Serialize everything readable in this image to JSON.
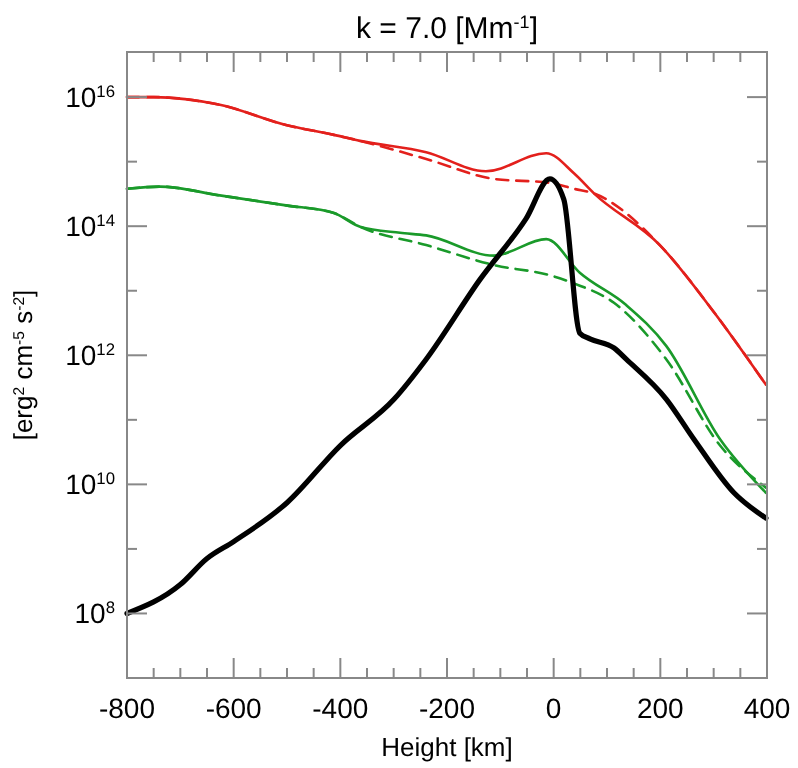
{
  "chart_data": {
    "type": "line",
    "title": "k = 7.0 [Mm$^{-1}$]",
    "xlabel": "Height [km]",
    "ylabel": "[erg$^{2}$ cm$^{-5}$ s$^{-2}$]",
    "log": "y",
    "grid": false,
    "xlim": [
      -800,
      400
    ],
    "ylim": [
      10000000.0,
      5e+16
    ],
    "xticks": [
      -800,
      {
        "value": -750,
        "label": null
      },
      {
        "value": -700,
        "label": null
      },
      {
        "value": -650,
        "label": null
      },
      -600,
      {
        "value": -550,
        "label": null
      },
      {
        "value": -500,
        "label": null
      },
      {
        "value": -450,
        "label": null
      },
      -400,
      {
        "value": -350,
        "label": null
      },
      {
        "value": -300,
        "label": null
      },
      {
        "value": -250,
        "label": null
      },
      -200,
      {
        "value": -150,
        "label": null
      },
      {
        "value": -100,
        "label": null
      },
      {
        "value": -50,
        "label": null
      },
      0,
      {
        "value": 50,
        "label": null
      },
      {
        "value": 100,
        "label": null
      },
      {
        "value": 150,
        "label": null
      },
      200,
      {
        "value": 250,
        "label": null
      },
      {
        "value": 300,
        "label": null
      },
      {
        "value": 350,
        "label": null
      },
      400
    ],
    "yticks": [
      {
        "value": 100000000.0,
        "label": "10$^{8}$"
      },
      {
        "value": 1000000000.0,
        "label": null
      },
      {
        "value": 10000000000.0,
        "label": "10$^{10}$"
      },
      {
        "value": 100000000000.0,
        "label": null
      },
      {
        "value": 1000000000000.0,
        "label": "10$^{12}$"
      },
      {
        "value": 10000000000000.0,
        "label": null
      },
      {
        "value": 100000000000000.0,
        "label": "10$^{14}$"
      },
      {
        "value": 1000000000000000.0,
        "label": null
      },
      {
        "value": 1e+16,
        "label": "10$^{16}$"
      }
    ],
    "series": [
      {
        "color": "#e3201c",
        "line_style": "solid",
        "x": [
          -800,
          -750,
          -626,
          -502,
          -412,
          -363,
          -239,
          -127,
          -14,
          38,
          76,
          199,
          301,
          398
        ],
        "values": [
          1e+16,
          1e+16,
          7600000000000000.0,
          3700000000000000.0,
          2600000000000000.0,
          2100000000000000.0,
          1400000000000000.0,
          710000000000000.0,
          1350000000000000.0,
          660000000000000.0,
          320000000000000.0,
          51000000000000.0,
          4600000000000.0,
          350000000000.0
        ]
      },
      {
        "color": "#e3201c",
        "line_style": "dashed",
        "x": [
          -800,
          -750,
          -626,
          -502,
          -412,
          -363,
          -239,
          -112,
          -7,
          38,
          76,
          199,
          301,
          398
        ],
        "values": [
          1e+16,
          1e+16,
          7600000000000000.0,
          3700000000000000.0,
          2600000000000000.0,
          2100000000000000.0,
          1100000000000000.0,
          540000000000000.0,
          470000000000000.0,
          380000000000000.0,
          320000000000000.0,
          51000000000000.0,
          4600000000000.0,
          350000000000.0
        ]
      },
      {
        "color": "#1a9a2a",
        "line_style": "solid",
        "x": [
          -800,
          -738,
          -626,
          -502,
          -412,
          -363,
          -288,
          -239,
          -112,
          -14,
          49,
          136,
          211,
          312,
          398
        ],
        "values": [
          380000000000000.0,
          410000000000000.0,
          300000000000000.0,
          210000000000000.0,
          160000000000000.0,
          98000000000000.0,
          79000000000000.0,
          72000000000000.0,
          35000000000000.0,
          63000000000000.0,
          19000000000000.0,
          6000000000000.0,
          1400000000000.0,
          50000000000.0,
          7400000000.0
        ]
      },
      {
        "color": "#1a9a2a",
        "line_style": "dashed",
        "x": [
          -800,
          -738,
          -626,
          -502,
          -412,
          -363,
          -239,
          -112,
          -3,
          38,
          113,
          211,
          312,
          398
        ],
        "values": [
          380000000000000.0,
          410000000000000.0,
          300000000000000.0,
          210000000000000.0,
          160000000000000.0,
          98000000000000.0,
          51000000000000.0,
          25000000000000.0,
          17000000000000.0,
          13000000000000.0,
          6500000000000.0,
          870000000000.0,
          40000000000.0,
          8900000000.0
        ]
      },
      {
        "color": "#000000",
        "line_style": "solid",
        "x": [
          -800,
          -700,
          -650,
          -600,
          -500,
          -400,
          -299,
          -239,
          -138,
          -52,
          -7,
          19,
          49,
          68,
          113,
          136,
          211,
          263,
          338,
          398
        ],
        "values": [
          100000000.0,
          280000000.0,
          710000000.0,
          1300000000.0,
          5200000000.0,
          40000000000.0,
          210000000000.0,
          870000000000.0,
          15000000000000.0,
          130000000000000.0,
          540000000000000.0,
          260000000000000.0,
          2200000000000.0,
          1800000000000.0,
          1300000000000.0,
          870000000000.0,
          210000000000.0,
          50000000000.0,
          7400000000.0,
          3000000000.0
        ]
      }
    ]
  }
}
